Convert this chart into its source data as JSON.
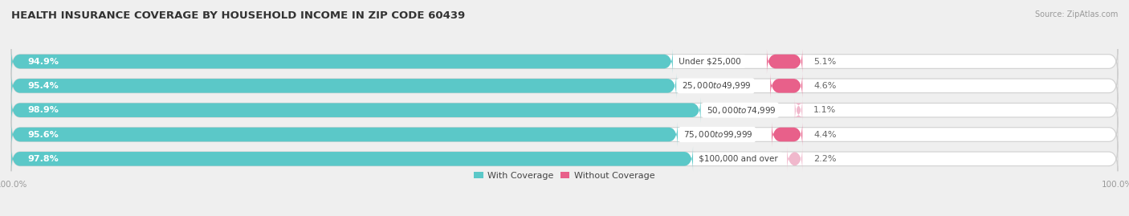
{
  "title": "HEALTH INSURANCE COVERAGE BY HOUSEHOLD INCOME IN ZIP CODE 60439",
  "source": "Source: ZipAtlas.com",
  "categories": [
    "Under $25,000",
    "$25,000 to $49,999",
    "$50,000 to $74,999",
    "$75,000 to $99,999",
    "$100,000 and over"
  ],
  "with_coverage": [
    94.9,
    95.4,
    98.9,
    95.6,
    97.8
  ],
  "without_coverage": [
    5.1,
    4.6,
    1.1,
    4.4,
    2.2
  ],
  "color_with": "#5bc8c8",
  "color_without_0": "#e8608a",
  "color_without_1": "#e8608a",
  "color_without_2": "#f0a0b8",
  "color_without_3": "#e8608a",
  "color_without_4": "#f0a0b8",
  "colors_without": [
    "#e8608a",
    "#e8608a",
    "#f0b8cc",
    "#e8608a",
    "#f0b8cc"
  ],
  "bg_color": "#efefef",
  "bar_bg": "#ffffff",
  "title_fontsize": 9.5,
  "label_fontsize": 8.0,
  "tick_fontsize": 7.5,
  "bar_height": 0.58,
  "bar_scale": 0.63,
  "xlim": [
    0,
    100
  ],
  "legend_labels": [
    "With Coverage",
    "Without Coverage"
  ],
  "legend_colors": [
    "#5bc8c8",
    "#e8608a"
  ]
}
